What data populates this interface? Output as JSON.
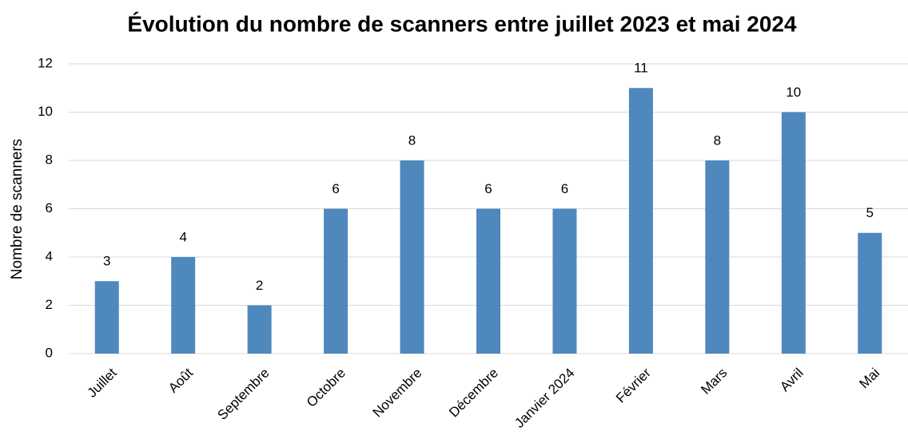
{
  "chart_data": {
    "type": "bar",
    "title": "Évolution du nombre de scanners entre juillet 2023 et mai 2024",
    "y_label": "Nombre de scanners",
    "categories": [
      "Juillet",
      "Août",
      "Septembre",
      "Octobre",
      "Novembre",
      "Décembre",
      "Janvier 2024",
      "Février",
      "Mars",
      "Avril",
      "Mai"
    ],
    "values": [
      3,
      4,
      2,
      6,
      8,
      6,
      6,
      11,
      8,
      10,
      5
    ],
    "color": "#4f88bd",
    "ylim": [
      0,
      12
    ],
    "yticks": [
      0,
      2,
      4,
      6,
      8,
      10,
      12
    ],
    "grid": true
  }
}
